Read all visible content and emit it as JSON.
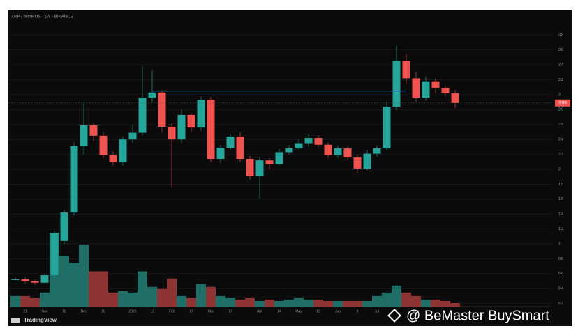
{
  "chart_data": {
    "type": "candlestick",
    "title": "XRP / TetherUS · 1W · BINANCE",
    "categories": [
      null,
      "21",
      null,
      "Nov",
      null,
      "18",
      null,
      "Dec",
      null,
      "16",
      null,
      null,
      "2025",
      null,
      "13",
      null,
      "Feb",
      null,
      "17",
      null,
      "Mar",
      null,
      "17",
      null,
      null,
      "Apr",
      null,
      "14",
      null,
      "May",
      null,
      "12",
      null,
      "Jun",
      null,
      "9",
      null,
      "Jul",
      null,
      "7",
      null,
      "Aug",
      null,
      null,
      null,
      null
    ],
    "open": [
      0.53,
      0.53,
      0.5,
      0.48,
      0.58,
      1.04,
      1.42,
      2.31,
      2.59,
      2.45,
      2.19,
      2.1,
      2.4,
      2.49,
      2.96,
      3.03,
      2.57,
      2.4,
      2.73,
      2.56,
      2.93,
      2.14,
      2.29,
      2.44,
      2.14,
      1.91,
      2.12,
      2.07,
      2.23,
      2.28,
      2.35,
      2.42,
      2.33,
      2.19,
      2.28,
      2.16,
      2.01,
      2.21,
      2.28,
      2.84,
      3.45,
      3.22,
      2.96,
      3.18,
      3.09,
      3.02
    ],
    "high": [
      0.55,
      0.55,
      0.52,
      0.6,
      1.18,
      1.46,
      2.36,
      2.89,
      2.62,
      2.5,
      2.24,
      2.44,
      2.6,
      3.38,
      3.33,
      3.06,
      2.62,
      2.8,
      2.75,
      2.98,
      2.97,
      2.33,
      2.48,
      2.5,
      2.18,
      2.16,
      2.15,
      2.27,
      2.32,
      2.4,
      2.48,
      2.46,
      2.36,
      2.32,
      2.31,
      2.2,
      2.25,
      2.32,
      2.9,
      3.66,
      3.55,
      3.3,
      3.25,
      3.22,
      3.12,
      3.06
    ],
    "low": [
      0.51,
      0.47,
      0.45,
      0.46,
      0.55,
      1.0,
      1.38,
      2.2,
      2.38,
      2.15,
      2.05,
      2.05,
      2.35,
      2.45,
      2.9,
      2.5,
      1.76,
      2.35,
      2.5,
      2.52,
      2.1,
      2.08,
      2.25,
      2.1,
      1.86,
      1.61,
      2.0,
      2.05,
      2.2,
      2.25,
      2.3,
      2.3,
      2.15,
      2.15,
      2.12,
      1.95,
      1.98,
      2.17,
      2.25,
      2.8,
      3.15,
      2.9,
      2.92,
      3.02,
      2.98,
      2.82
    ],
    "close": [
      0.53,
      0.5,
      0.48,
      0.58,
      1.14,
      1.42,
      2.31,
      2.59,
      2.45,
      2.19,
      2.1,
      2.4,
      2.49,
      2.96,
      3.03,
      2.57,
      2.4,
      2.73,
      2.56,
      2.93,
      2.14,
      2.29,
      2.44,
      2.14,
      1.91,
      2.12,
      2.07,
      2.23,
      2.28,
      2.35,
      2.42,
      2.33,
      2.19,
      2.28,
      2.16,
      2.01,
      2.21,
      2.28,
      2.84,
      3.45,
      3.22,
      2.96,
      3.18,
      3.09,
      3.02,
      2.89
    ],
    "volume": [
      15,
      15,
      12,
      20,
      105,
      72,
      62,
      88,
      50,
      50,
      20,
      22,
      20,
      50,
      28,
      25,
      40,
      15,
      12,
      32,
      28,
      15,
      12,
      10,
      12,
      8,
      10,
      8,
      10,
      12,
      10,
      10,
      8,
      8,
      8,
      8,
      8,
      15,
      20,
      30,
      20,
      15,
      10,
      10,
      8,
      5
    ],
    "up_color": "#26a69a",
    "down_color": "#ef5350",
    "volume_up_color": "#1f6f67",
    "volume_down_color": "#8e3434",
    "ylim": [
      0.16,
      3.99
    ],
    "yticks": [
      0.2,
      0.4,
      0.6,
      0.8,
      1.0,
      1.2,
      1.4,
      1.6,
      1.8,
      2.0,
      2.2,
      2.4,
      2.6,
      2.8,
      3.0,
      3.2,
      3.4,
      3.6,
      3.8
    ],
    "vlim": [
      0,
      130
    ],
    "grid": true,
    "resistance": {
      "value": 3.05,
      "range": [
        14,
        40
      ],
      "color": "#2f5fb0"
    },
    "branding": "TradingView",
    "watermark": "@ BeMaster BuySmart"
  }
}
